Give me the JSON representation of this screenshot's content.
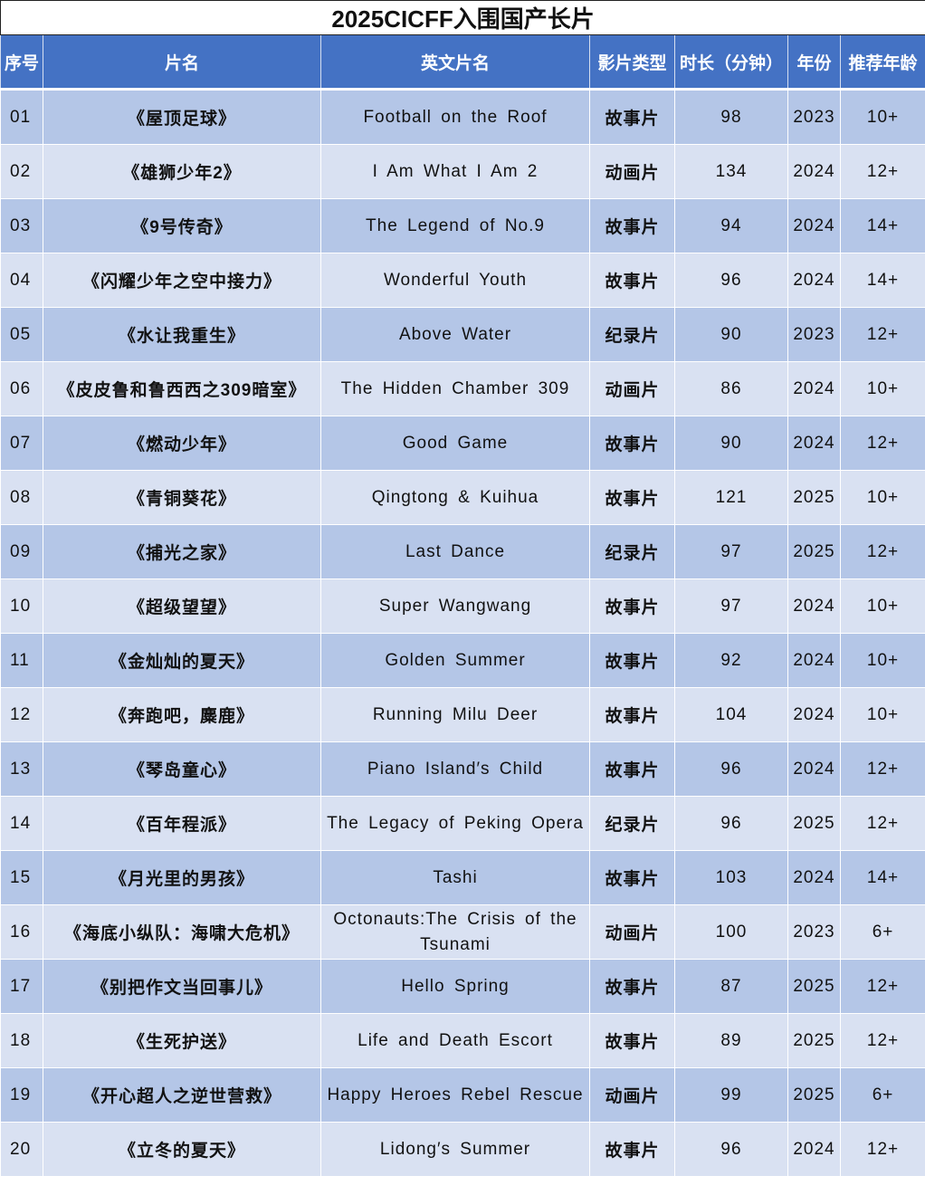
{
  "title": "2025CICFF入围国产长片",
  "headers": [
    "序号",
    "片名",
    "英文片名",
    "影片类型",
    "时长（分钟）",
    "年份",
    "推荐年龄"
  ],
  "colors": {
    "header": "#4472C4",
    "row_odd": "#B4C6E7",
    "row_even": "#D9E1F2"
  },
  "rows": [
    [
      "01",
      "《屋顶足球》",
      "Football on the Roof",
      "故事片",
      "98",
      "2023",
      "10+"
    ],
    [
      "02",
      "《雄狮少年2》",
      "I Am What I Am 2",
      "动画片",
      "134",
      "2024",
      "12+"
    ],
    [
      "03",
      "《9号传奇》",
      "The Legend of No.9",
      "故事片",
      "94",
      "2024",
      "14+"
    ],
    [
      "04",
      "《闪耀少年之空中接力》",
      "Wonderful Youth",
      "故事片",
      "96",
      "2024",
      "14+"
    ],
    [
      "05",
      "《水让我重生》",
      "Above Water",
      "纪录片",
      "90",
      "2023",
      "12+"
    ],
    [
      "06",
      "《皮皮鲁和鲁西西之309暗室》",
      "The Hidden Chamber 309",
      "动画片",
      "86",
      "2024",
      "10+"
    ],
    [
      "07",
      "《燃动少年》",
      "Good Game",
      "故事片",
      "90",
      "2024",
      "12+"
    ],
    [
      "08",
      "《青铜葵花》",
      "Qingtong & Kuihua",
      "故事片",
      "121",
      "2025",
      "10+"
    ],
    [
      "09",
      "《捕光之家》",
      "Last Dance",
      "纪录片",
      "97",
      "2025",
      "12+"
    ],
    [
      "10",
      "《超级望望》",
      "Super Wangwang",
      "故事片",
      "97",
      "2024",
      "10+"
    ],
    [
      "11",
      "《金灿灿的夏天》",
      "Golden Summer",
      "故事片",
      "92",
      "2024",
      "10+"
    ],
    [
      "12",
      "《奔跑吧，麋鹿》",
      "Running Milu Deer",
      "故事片",
      "104",
      "2024",
      "10+"
    ],
    [
      "13",
      "《琴岛童心》",
      "Piano Island′s Child",
      "故事片",
      "96",
      "2024",
      "12+"
    ],
    [
      "14",
      "《百年程派》",
      "The Legacy of Peking Opera",
      "纪录片",
      "96",
      "2025",
      "12+"
    ],
    [
      "15",
      "《月光里的男孩》",
      "Tashi",
      "故事片",
      "103",
      "2024",
      "14+"
    ],
    [
      "16",
      "《海底小纵队：海啸大危机》",
      "Octonauts:The Crisis of the Tsunami",
      "动画片",
      "100",
      "2023",
      "6+"
    ],
    [
      "17",
      "《别把作文当回事儿》",
      "Hello Spring",
      "故事片",
      "87",
      "2025",
      "12+"
    ],
    [
      "18",
      "《生死护送》",
      "Life and Death Escort",
      "故事片",
      "89",
      "2025",
      "12+"
    ],
    [
      "19",
      "《开心超人之逆世营救》",
      "Happy Heroes Rebel Rescue",
      "动画片",
      "99",
      "2025",
      "6+"
    ],
    [
      "20",
      "《立冬的夏天》",
      "Lidong′s Summer",
      "故事片",
      "96",
      "2024",
      "12+"
    ]
  ]
}
